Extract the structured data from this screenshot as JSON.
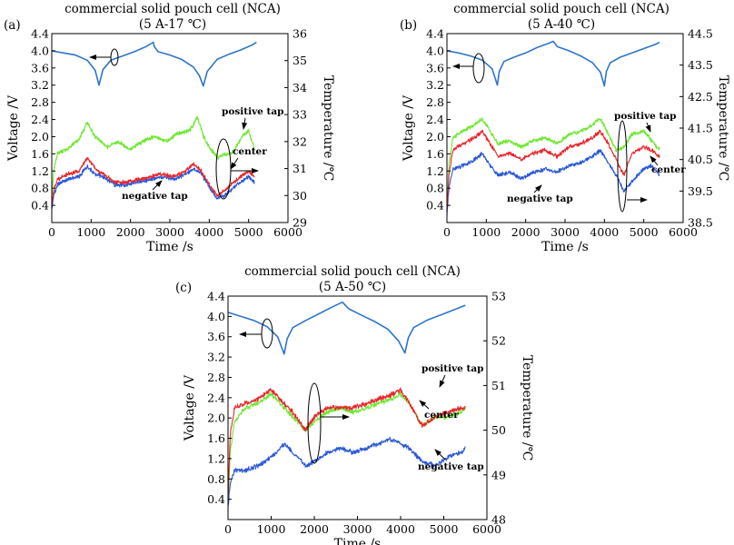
{
  "chart_data": [
    {
      "type": "line",
      "panel_label": "(a)",
      "title": "commercial solid pouch cell (NCA)",
      "subtitle": "(5 A-17 ℃)",
      "xlabel": "Time /s",
      "ylabel": "Voltage /V",
      "y2label": "Temperature /℃",
      "xlim": [
        0,
        6000
      ],
      "ylim": [
        0.0,
        4.4
      ],
      "y2lim": [
        29,
        36
      ],
      "xticks": [
        "0",
        "1000",
        "2000",
        "3000",
        "4000",
        "5000",
        "6000"
      ],
      "yticks": [
        "0.4",
        "0.8",
        "1.2",
        "1.6",
        "2.0",
        "2.4",
        "2.8",
        "3.2",
        "3.6",
        "4.0",
        "4.4"
      ],
      "y2ticks": [
        "29",
        "30",
        "31",
        "32",
        "33",
        "34",
        "35",
        "36"
      ],
      "series": [
        {
          "name": "voltage",
          "axis": "left",
          "color": "#2e75c8",
          "x": [
            0,
            300,
            600,
            900,
            1100,
            1200,
            1300,
            1500,
            1800,
            2100,
            2400,
            2580,
            2600,
            2700,
            3000,
            3300,
            3600,
            3750,
            3850,
            3950,
            4200,
            4500,
            4800,
            5100,
            5200
          ],
          "values": [
            4.0,
            3.95,
            3.9,
            3.78,
            3.55,
            3.2,
            3.56,
            3.78,
            3.88,
            3.98,
            4.1,
            4.2,
            4.1,
            3.98,
            3.9,
            3.8,
            3.62,
            3.42,
            3.18,
            3.52,
            3.8,
            3.92,
            4.02,
            4.14,
            4.2
          ]
        },
        {
          "name": "positive tap",
          "axis": "right",
          "color": "#6ee830",
          "x": [
            0,
            50,
            150,
            400,
            700,
            900,
            1100,
            1400,
            1700,
            2000,
            2300,
            2600,
            2900,
            3200,
            3500,
            3700,
            3850,
            4000,
            4200,
            4350,
            4600,
            4850,
            5000,
            5150
          ],
          "values": [
            29.9,
            30.9,
            31.6,
            31.7,
            32.1,
            32.7,
            32.2,
            31.8,
            32.0,
            31.7,
            32.0,
            32.2,
            32.0,
            32.3,
            32.4,
            32.9,
            32.2,
            31.8,
            31.4,
            31.5,
            31.6,
            32.2,
            32.4,
            31.7
          ]
        },
        {
          "name": "center",
          "axis": "right",
          "color": "#e8272d",
          "x": [
            0,
            50,
            150,
            400,
            700,
            900,
            1100,
            1300,
            1600,
            1900,
            2200,
            2500,
            2800,
            3100,
            3400,
            3600,
            3800,
            4000,
            4200,
            4400,
            4700,
            5000,
            5150
          ],
          "values": [
            29.6,
            30.2,
            30.6,
            30.8,
            30.9,
            31.4,
            31.0,
            30.8,
            30.5,
            30.5,
            30.6,
            30.7,
            30.8,
            30.7,
            30.9,
            31.2,
            30.9,
            30.4,
            30.0,
            30.2,
            30.6,
            30.9,
            30.7
          ]
        },
        {
          "name": "negative tap",
          "axis": "right",
          "color": "#2a58d6",
          "x": [
            0,
            50,
            150,
            400,
            700,
            900,
            1100,
            1300,
            1600,
            1900,
            2200,
            2500,
            2800,
            3100,
            3400,
            3600,
            3800,
            4000,
            4200,
            4400,
            4700,
            5000,
            5150
          ],
          "values": [
            29.5,
            30.0,
            30.4,
            30.6,
            30.7,
            31.1,
            30.8,
            30.7,
            30.4,
            30.4,
            30.5,
            30.6,
            30.7,
            30.6,
            30.8,
            31.0,
            30.8,
            30.3,
            29.9,
            30.0,
            30.4,
            30.7,
            30.5
          ]
        }
      ],
      "annotations": [
        "positive tap",
        "center",
        "negative tap"
      ]
    },
    {
      "type": "line",
      "panel_label": "(b)",
      "title": "commercial solid pouch cell (NCA)",
      "subtitle": "(5 A-40 ℃)",
      "xlabel": "Time /s",
      "ylabel": "Voltage /V",
      "y2label": "Temperature /℃",
      "xlim": [
        0,
        6000
      ],
      "ylim": [
        0.0,
        4.4
      ],
      "y2lim": [
        38.5,
        44.5
      ],
      "xticks": [
        "0",
        "1000",
        "2000",
        "3000",
        "4000",
        "5000",
        "6000"
      ],
      "yticks": [
        "0.4",
        "0.8",
        "1.2",
        "1.6",
        "2.0",
        "2.4",
        "2.8",
        "3.2",
        "3.6",
        "4.0",
        "4.4"
      ],
      "y2ticks": [
        "38.5",
        "39.5",
        "40.5",
        "41.5",
        "42.5",
        "43.5",
        "44.5"
      ],
      "series": [
        {
          "name": "voltage",
          "axis": "left",
          "color": "#2e75c8",
          "x": [
            0,
            300,
            600,
            900,
            1150,
            1280,
            1330,
            1450,
            1700,
            2000,
            2300,
            2600,
            2700,
            2800,
            3100,
            3400,
            3700,
            3900,
            4000,
            4050,
            4150,
            4400,
            4700,
            5000,
            5300,
            5400
          ],
          "values": [
            4.0,
            3.95,
            3.88,
            3.78,
            3.58,
            3.2,
            3.52,
            3.75,
            3.85,
            3.95,
            4.08,
            4.18,
            4.22,
            4.1,
            4.0,
            3.88,
            3.72,
            3.5,
            3.18,
            3.52,
            3.72,
            3.85,
            3.95,
            4.05,
            4.15,
            4.2
          ]
        },
        {
          "name": "positive tap",
          "axis": "right",
          "color": "#6ee830",
          "x": [
            0,
            50,
            150,
            400,
            700,
            900,
            1100,
            1300,
            1600,
            1900,
            2200,
            2500,
            2800,
            3100,
            3400,
            3700,
            3900,
            4100,
            4300,
            4500,
            4700,
            5000,
            5200,
            5400
          ],
          "values": [
            38.9,
            40.3,
            41.2,
            41.4,
            41.6,
            41.8,
            41.4,
            41.0,
            41.1,
            40.9,
            41.1,
            41.2,
            41.0,
            41.3,
            41.4,
            41.6,
            41.8,
            41.3,
            40.8,
            40.9,
            41.3,
            41.4,
            41.1,
            40.8
          ]
        },
        {
          "name": "center",
          "axis": "right",
          "color": "#e8272d",
          "x": [
            0,
            50,
            150,
            400,
            700,
            900,
            1100,
            1300,
            1600,
            1900,
            2200,
            2500,
            2800,
            3100,
            3400,
            3700,
            3900,
            4100,
            4300,
            4500,
            4700,
            5000,
            5200,
            5400
          ],
          "values": [
            38.8,
            40.0,
            40.8,
            41.0,
            41.2,
            41.4,
            41.0,
            40.6,
            40.7,
            40.5,
            40.7,
            40.8,
            40.6,
            40.9,
            41.0,
            41.2,
            41.4,
            41.0,
            40.5,
            40.0,
            40.7,
            40.9,
            40.8,
            40.6
          ]
        },
        {
          "name": "negative tap",
          "axis": "right",
          "color": "#2a58d6",
          "x": [
            0,
            50,
            150,
            400,
            700,
            900,
            1100,
            1300,
            1600,
            1900,
            2200,
            2500,
            2800,
            3100,
            3400,
            3700,
            3900,
            4100,
            4300,
            4500,
            4700,
            5000,
            5200,
            5400
          ],
          "values": [
            38.7,
            39.6,
            40.2,
            40.3,
            40.5,
            40.7,
            40.3,
            40.0,
            40.1,
            39.9,
            40.1,
            40.2,
            40.1,
            40.3,
            40.4,
            40.6,
            40.8,
            40.4,
            40.0,
            39.5,
            39.8,
            40.2,
            40.3,
            40.0
          ]
        }
      ],
      "annotations": [
        "positive tap",
        "center",
        "negative tap"
      ]
    },
    {
      "type": "line",
      "panel_label": "(c)",
      "title": "commercial solid pouch cell (NCA)",
      "subtitle": "(5 A-50 ℃)",
      "xlabel": "Time /s",
      "ylabel": "Voltage /V",
      "y2label": "Temperature /℃",
      "xlim": [
        0,
        6000
      ],
      "ylim": [
        0.0,
        4.4
      ],
      "y2lim": [
        48,
        53
      ],
      "xticks": [
        "0",
        "1000",
        "2000",
        "3000",
        "4000",
        "5000",
        "6000"
      ],
      "yticks": [
        "0.4",
        "0.8",
        "1.2",
        "1.6",
        "2.0",
        "2.4",
        "2.8",
        "3.2",
        "3.6",
        "4.0",
        "4.4"
      ],
      "y2ticks": [
        "48",
        "49",
        "50",
        "51",
        "52",
        "53"
      ],
      "series": [
        {
          "name": "voltage",
          "axis": "left",
          "color": "#2e75c8",
          "x": [
            0,
            300,
            600,
            900,
            1150,
            1300,
            1370,
            1500,
            1800,
            2100,
            2400,
            2650,
            2800,
            3100,
            3400,
            3700,
            3950,
            4100,
            4180,
            4300,
            4600,
            4900,
            5200,
            5500
          ],
          "values": [
            4.08,
            4.0,
            3.92,
            3.8,
            3.6,
            3.26,
            3.56,
            3.78,
            3.92,
            4.05,
            4.18,
            4.28,
            4.15,
            4.02,
            3.9,
            3.75,
            3.52,
            3.28,
            3.58,
            3.78,
            3.92,
            4.02,
            4.12,
            4.22
          ]
        },
        {
          "name": "positive tap",
          "axis": "right",
          "color": "#6ee830",
          "x": [
            0,
            50,
            150,
            400,
            700,
            1000,
            1200,
            1500,
            1800,
            2000,
            2300,
            2600,
            2900,
            3200,
            3500,
            3800,
            4000,
            4200,
            4500,
            4800,
            5100,
            5400,
            5500
          ],
          "values": [
            48.2,
            49.5,
            50.2,
            50.5,
            50.6,
            50.8,
            50.6,
            50.3,
            50.0,
            50.2,
            50.4,
            50.5,
            50.4,
            50.5,
            50.6,
            50.7,
            50.8,
            50.6,
            50.1,
            50.3,
            50.3,
            50.4,
            50.5
          ]
        },
        {
          "name": "center",
          "axis": "right",
          "color": "#e8272d",
          "x": [
            0,
            50,
            150,
            400,
            700,
            1000,
            1200,
            1500,
            1800,
            2000,
            2300,
            2600,
            2900,
            3200,
            3500,
            3800,
            4000,
            4200,
            4500,
            4800,
            5100,
            5400,
            5500
          ],
          "values": [
            48.4,
            49.9,
            50.5,
            50.6,
            50.7,
            50.9,
            50.7,
            50.4,
            50.0,
            50.3,
            50.5,
            50.5,
            50.5,
            50.6,
            50.7,
            50.8,
            50.9,
            50.6,
            50.1,
            50.3,
            50.4,
            50.5,
            50.5
          ]
        },
        {
          "name": "negative tap",
          "axis": "right",
          "color": "#2a58d6",
          "x": [
            0,
            50,
            150,
            400,
            700,
            1000,
            1300,
            1500,
            1800,
            2000,
            2300,
            2600,
            2900,
            3200,
            3500,
            3800,
            4000,
            4200,
            4500,
            4800,
            5100,
            5400,
            5500
          ],
          "values": [
            48.3,
            48.8,
            49.1,
            49.1,
            49.2,
            49.4,
            49.7,
            49.5,
            49.2,
            49.3,
            49.5,
            49.6,
            49.5,
            49.6,
            49.7,
            49.8,
            49.7,
            49.6,
            49.3,
            49.2,
            49.4,
            49.5,
            49.6
          ]
        }
      ],
      "annotations": [
        "positive tap",
        "center",
        "negative tap"
      ]
    }
  ]
}
